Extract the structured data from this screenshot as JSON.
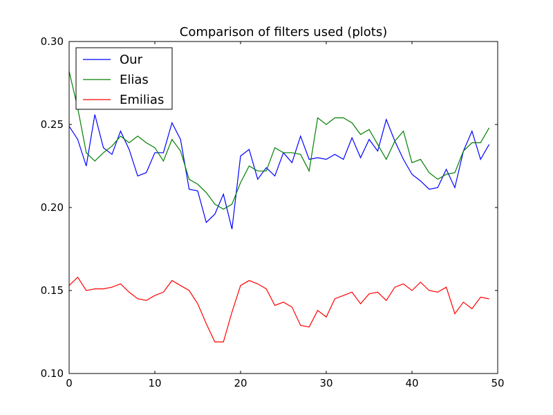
{
  "chart_data": {
    "type": "line",
    "title": "Comparison of filters used (plots)",
    "xlabel": "",
    "ylabel": "",
    "xlim": [
      0,
      50
    ],
    "ylim": [
      0.1,
      0.3
    ],
    "x_ticks": [
      0,
      10,
      20,
      30,
      40,
      50
    ],
    "x_tick_labels": [
      "0",
      "10",
      "20",
      "30",
      "40",
      "50"
    ],
    "y_ticks": [
      0.1,
      0.15,
      0.2,
      0.25,
      0.3
    ],
    "y_tick_labels": [
      "0.10",
      "0.15",
      "0.20",
      "0.25",
      "0.30"
    ],
    "grid": false,
    "legend_position": "top-left",
    "x": [
      0,
      1,
      2,
      3,
      4,
      5,
      6,
      7,
      8,
      9,
      10,
      11,
      12,
      13,
      14,
      15,
      16,
      17,
      18,
      19,
      20,
      21,
      22,
      23,
      24,
      25,
      26,
      27,
      28,
      29,
      30,
      31,
      32,
      33,
      34,
      35,
      36,
      37,
      38,
      39,
      40,
      41,
      42,
      43,
      44,
      45,
      46,
      47,
      48,
      49
    ],
    "series": [
      {
        "name": "Our",
        "color": "#0000ff",
        "values": [
          0.249,
          0.241,
          0.225,
          0.256,
          0.236,
          0.232,
          0.246,
          0.235,
          0.219,
          0.221,
          0.233,
          0.233,
          0.251,
          0.241,
          0.211,
          0.21,
          0.191,
          0.196,
          0.208,
          0.187,
          0.231,
          0.235,
          0.217,
          0.224,
          0.219,
          0.233,
          0.227,
          0.243,
          0.229,
          0.23,
          0.229,
          0.232,
          0.229,
          0.242,
          0.23,
          0.241,
          0.234,
          0.253,
          0.24,
          0.229,
          0.22,
          0.216,
          0.211,
          0.212,
          0.223,
          0.212,
          0.234,
          0.246,
          0.229,
          0.238
        ]
      },
      {
        "name": "Elias",
        "color": "#008000",
        "values": [
          0.282,
          0.26,
          0.233,
          0.228,
          0.233,
          0.237,
          0.243,
          0.239,
          0.243,
          0.239,
          0.236,
          0.228,
          0.241,
          0.234,
          0.217,
          0.214,
          0.209,
          0.202,
          0.199,
          0.202,
          0.215,
          0.225,
          0.222,
          0.222,
          0.236,
          0.233,
          0.233,
          0.232,
          0.222,
          0.254,
          0.25,
          0.254,
          0.254,
          0.251,
          0.244,
          0.247,
          0.238,
          0.229,
          0.24,
          0.246,
          0.227,
          0.229,
          0.221,
          0.217,
          0.22,
          0.221,
          0.234,
          0.239,
          0.239,
          0.248
        ]
      },
      {
        "name": "Emilias",
        "color": "#ff0000",
        "values": [
          0.153,
          0.158,
          0.15,
          0.151,
          0.151,
          0.152,
          0.154,
          0.149,
          0.145,
          0.144,
          0.147,
          0.149,
          0.156,
          0.153,
          0.15,
          0.142,
          0.13,
          0.119,
          0.119,
          0.137,
          0.153,
          0.156,
          0.154,
          0.151,
          0.141,
          0.143,
          0.14,
          0.129,
          0.128,
          0.138,
          0.134,
          0.145,
          0.147,
          0.149,
          0.142,
          0.148,
          0.149,
          0.144,
          0.152,
          0.154,
          0.15,
          0.155,
          0.15,
          0.149,
          0.152,
          0.136,
          0.143,
          0.139,
          0.146,
          0.145
        ]
      }
    ]
  }
}
